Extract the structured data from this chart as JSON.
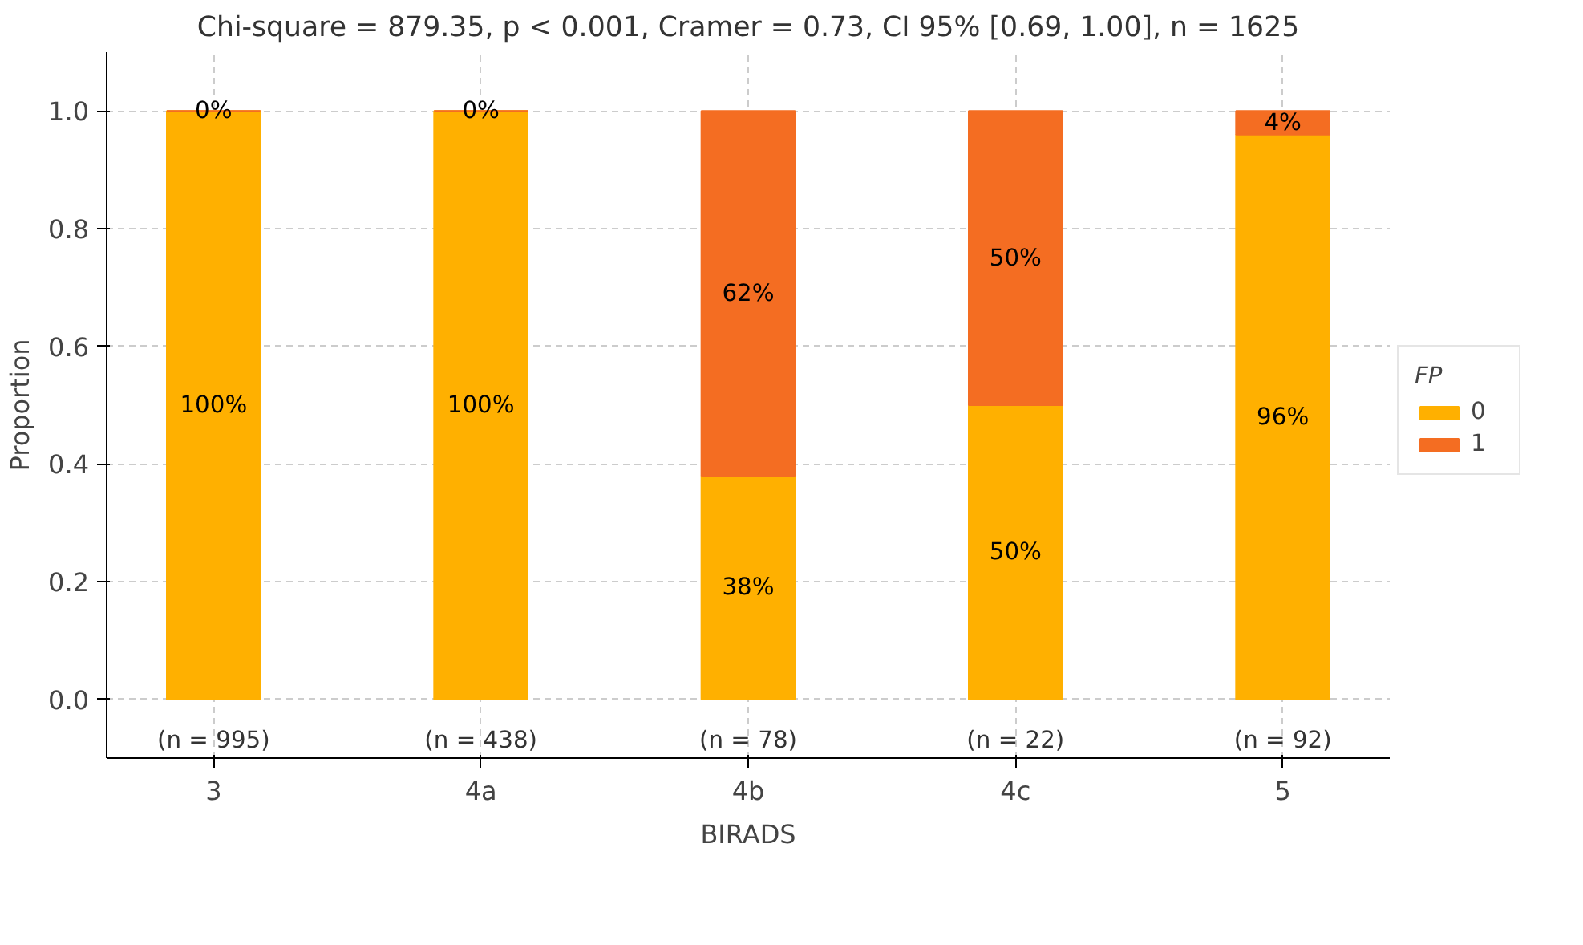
{
  "chart_data": {
    "type": "bar",
    "stacked": true,
    "title": "Chi-square = 879.35, p < 0.001, Cramer = 0.73, CI 95% [0.69, 1.00], n = 1625",
    "xlabel": "BIRADS",
    "ylabel": "Proportion",
    "legend_title": "FP",
    "legend": "right",
    "grid": true,
    "categories": [
      "3",
      "4a",
      "4b",
      "4c",
      "5"
    ],
    "ylim": [
      -0.1,
      1.1
    ],
    "yticks": [
      {
        "value": 0,
        "label": "0.0"
      },
      {
        "value": 0.2,
        "label": "0.2"
      },
      {
        "value": 0.4,
        "label": "0.4"
      },
      {
        "value": 0.6,
        "label": "0.6"
      },
      {
        "value": 0.8,
        "label": "0.8"
      },
      {
        "value": 1,
        "label": "1.0"
      }
    ],
    "series": [
      {
        "name": "0",
        "color": "#ffb000",
        "values": [
          1.0,
          1.0,
          0.38,
          0.5,
          0.96
        ],
        "value_labels": [
          "100%",
          "100%",
          "38%",
          "50%",
          "96%"
        ]
      },
      {
        "name": "1",
        "color": "#f46d22",
        "values": [
          0.0,
          0.0,
          0.62,
          0.5,
          0.04
        ],
        "value_labels": [
          "0%",
          "0%",
          "62%",
          "50%",
          "4%"
        ]
      }
    ],
    "annotations": [
      "(n = 995)",
      "(n = 438)",
      "(n = 78)",
      "(n = 22)",
      "(n = 92)"
    ]
  }
}
